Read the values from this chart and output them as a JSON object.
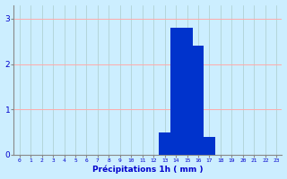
{
  "hours": [
    0,
    1,
    2,
    3,
    4,
    5,
    6,
    7,
    8,
    9,
    10,
    11,
    12,
    13,
    14,
    15,
    16,
    17,
    18,
    19,
    20,
    21,
    22,
    23
  ],
  "values": [
    0,
    0,
    0,
    0,
    0,
    0,
    0,
    0,
    0,
    0,
    0,
    0,
    0,
    0.5,
    2.8,
    2.8,
    2.4,
    0.4,
    0,
    0,
    0,
    0,
    0,
    0
  ],
  "bar_color": "#0033cc",
  "background_color": "#cceeff",
  "grid_color_h": "#ffaaaa",
  "grid_color_v": "#aacccc",
  "xlabel": "Précipitations 1h ( mm )",
  "ylim": [
    0,
    3.3
  ],
  "yticks": [
    0,
    1,
    2,
    3
  ],
  "xlim": [
    -0.5,
    23.5
  ],
  "xlabel_color": "#0000cc",
  "tick_color": "#0000cc",
  "bar_width": 1.0
}
